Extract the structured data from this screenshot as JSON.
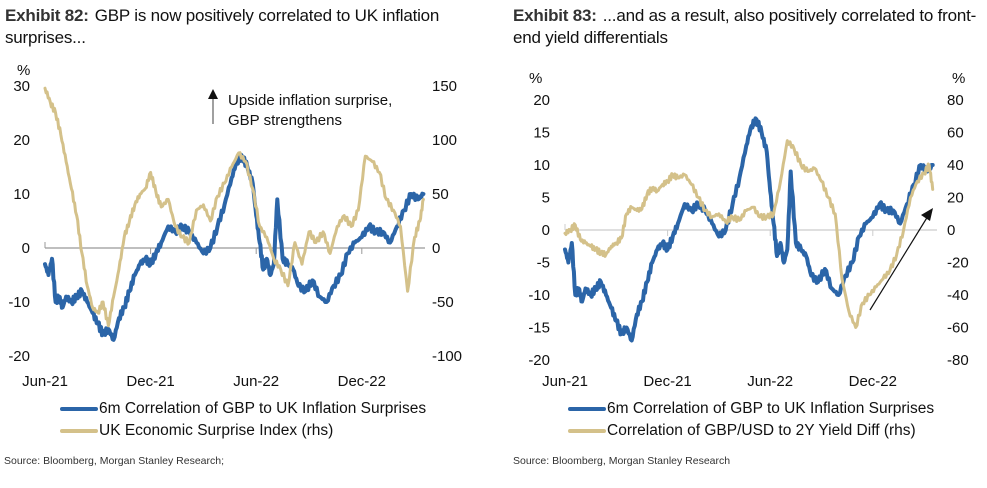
{
  "colors": {
    "blue": "#2B65A8",
    "gold": "#D4C18A",
    "axis": "#999999",
    "text": "#111111"
  },
  "chart_data": [
    {
      "type": "line",
      "exhibit": "Exhibit 82:",
      "title": "GBP is now positively correlated to UK inflation surprises...",
      "ylabel_left": "%",
      "ylim_left": [
        -20,
        30
      ],
      "yticks_left": [
        "30",
        "20",
        "10",
        "0",
        "-10",
        "-20"
      ],
      "ylim_right": [
        -100,
        150
      ],
      "yticks_right": [
        "150",
        "100",
        "50",
        "0",
        "-50",
        "-100"
      ],
      "xticks": [
        "Jun-21",
        "Dec-21",
        "Jun-22",
        "Dec-22"
      ],
      "x_months": "months since Jun-21 (0 = Jun-21)",
      "annotation": [
        "Upside inflation surprise,",
        "GBP strengthens"
      ],
      "series": [
        {
          "name": "6m Correlation of GBP to UK Inflation Surprises",
          "axis": "left",
          "color": "#2B65A8",
          "x": [
            0,
            0.2,
            0.4,
            0.6,
            0.8,
            1.0,
            1.2,
            1.5,
            1.8,
            2.1,
            2.4,
            2.7,
            3.0,
            3.3,
            3.6,
            3.9,
            4.2,
            4.5,
            4.8,
            5.1,
            5.4,
            5.7,
            6.0,
            6.3,
            6.6,
            7.0,
            7.4,
            7.8,
            8.2,
            8.6,
            9.0,
            9.4,
            9.8,
            10.2,
            10.6,
            10.9,
            11.2,
            11.5,
            11.8,
            12.0,
            12.2,
            12.4,
            12.6,
            12.8,
            13.0,
            13.2,
            13.5,
            13.8,
            14.1,
            14.4,
            14.8,
            15.2,
            15.6,
            16.0,
            16.4,
            16.8,
            17.2,
            17.6,
            18.0,
            18.4,
            18.8,
            19.2,
            19.6,
            20.0,
            20.4,
            20.8,
            21.2,
            21.5
          ],
          "values": [
            -3,
            -5,
            -2,
            -10,
            -9,
            -11,
            -9,
            -10,
            -9,
            -8,
            -10,
            -12,
            -14,
            -16,
            -15,
            -17,
            -13,
            -11,
            -8,
            -5,
            -3,
            -2,
            -3,
            -1,
            1,
            4,
            3,
            4,
            3,
            1,
            -1,
            0,
            4,
            8,
            13,
            16,
            17,
            15,
            12,
            6,
            1,
            -4,
            -2,
            -5,
            -3,
            9,
            -2,
            -3,
            -4,
            -7,
            -8,
            -6,
            -9,
            -10,
            -7,
            -5,
            -1,
            1,
            2,
            4,
            3,
            3,
            1,
            4,
            7,
            10,
            9,
            10
          ],
          "end_label": null
        },
        {
          "name": "UK Economic Surprise Index (rhs)",
          "axis": "right",
          "color": "#D4C18A",
          "x": [
            0,
            0.3,
            0.6,
            0.9,
            1.2,
            1.5,
            1.8,
            2.1,
            2.4,
            2.7,
            3.0,
            3.3,
            3.6,
            3.9,
            4.2,
            4.5,
            4.8,
            5.1,
            5.4,
            5.7,
            6.0,
            6.3,
            6.6,
            7.0,
            7.4,
            7.8,
            8.2,
            8.6,
            9.0,
            9.4,
            9.8,
            10.2,
            10.6,
            11.0,
            11.4,
            11.8,
            12.2,
            12.6,
            13.0,
            13.4,
            13.8,
            14.2,
            14.6,
            15.0,
            15.4,
            15.8,
            16.2,
            16.6,
            17.0,
            17.4,
            17.8,
            18.2,
            18.6,
            19.0,
            19.4,
            19.8,
            20.2,
            20.6,
            21.0,
            21.3,
            21.5
          ],
          "values": [
            148,
            135,
            125,
            105,
            80,
            55,
            30,
            -5,
            -35,
            -55,
            -60,
            -50,
            -72,
            -45,
            -20,
            10,
            25,
            40,
            50,
            55,
            70,
            52,
            38,
            45,
            20,
            10,
            5,
            35,
            40,
            25,
            48,
            60,
            75,
            88,
            80,
            55,
            20,
            10,
            -10,
            -20,
            -35,
            5,
            -15,
            15,
            5,
            15,
            -5,
            20,
            30,
            20,
            35,
            85,
            80,
            70,
            45,
            35,
            20,
            -40,
            10,
            25,
            45
          ],
          "end_label": null
        }
      ],
      "legend": [
        "6m Correlation of GBP to UK Inflation Surprises",
        "UK Economic Surprise Index (rhs)"
      ],
      "legend_placement": "bottom",
      "source": "Source: Bloomberg, Morgan Stanley Research;"
    },
    {
      "type": "line",
      "exhibit": "Exhibit 83:",
      "title": "...and as a result, also positively correlated to front-end yield differentials",
      "ylabel_left": "%",
      "ylabel_right": "%",
      "ylim_left": [
        -20,
        20
      ],
      "yticks_left": [
        "20",
        "15",
        "10",
        "5",
        "0",
        "-5",
        "-10",
        "-15",
        "-20"
      ],
      "ylim_right": [
        -80,
        80
      ],
      "yticks_right": [
        "80",
        "60",
        "40",
        "20",
        "0",
        "-20",
        "-40",
        "-60",
        "-80"
      ],
      "xticks": [
        "Jun-21",
        "Dec-21",
        "Jun-22",
        "Dec-22"
      ],
      "series": [
        {
          "name": "6m Correlation of GBP to UK Inflation Surprises",
          "axis": "left",
          "color": "#2B65A8",
          "x": [
            0,
            0.2,
            0.4,
            0.6,
            0.8,
            1.0,
            1.2,
            1.5,
            1.8,
            2.1,
            2.4,
            2.7,
            3.0,
            3.3,
            3.6,
            3.9,
            4.2,
            4.5,
            4.8,
            5.1,
            5.4,
            5.7,
            6.0,
            6.3,
            6.6,
            7.0,
            7.4,
            7.8,
            8.2,
            8.6,
            9.0,
            9.4,
            9.8,
            10.2,
            10.6,
            10.9,
            11.2,
            11.5,
            11.8,
            12.0,
            12.2,
            12.4,
            12.6,
            12.8,
            13.0,
            13.2,
            13.5,
            13.8,
            14.1,
            14.4,
            14.8,
            15.2,
            15.6,
            16.0,
            16.4,
            16.8,
            17.2,
            17.6,
            18.0,
            18.4,
            18.8,
            19.2,
            19.6,
            20.0,
            20.4,
            20.8,
            21.2,
            21.5
          ],
          "values": [
            -3,
            -5,
            -2,
            -10,
            -9,
            -11,
            -9,
            -10,
            -9,
            -8,
            -10,
            -12,
            -14,
            -16,
            -15,
            -17,
            -13,
            -11,
            -8,
            -5,
            -3,
            -2,
            -3,
            -1,
            1,
            4,
            3,
            4,
            3,
            1,
            -1,
            0,
            4,
            8,
            13,
            16,
            17,
            15,
            12,
            6,
            1,
            -4,
            -2,
            -5,
            -3,
            9,
            -2,
            -3,
            -4,
            -7,
            -8,
            -6,
            -9,
            -10,
            -7,
            -5,
            -1,
            1,
            2,
            4,
            3,
            3,
            1,
            4,
            7,
            10,
            9,
            10
          ]
        },
        {
          "name": "Correlation of GBP/USD to 2Y Yield Diff (rhs)",
          "axis": "right",
          "color": "#D4C18A",
          "x": [
            0,
            0.3,
            0.6,
            0.9,
            1.2,
            1.5,
            1.8,
            2.1,
            2.4,
            2.7,
            3.0,
            3.3,
            3.6,
            3.9,
            4.2,
            4.5,
            4.8,
            5.1,
            5.4,
            5.7,
            6.0,
            6.3,
            6.6,
            7.0,
            7.4,
            7.8,
            8.2,
            8.6,
            9.0,
            9.4,
            9.8,
            10.2,
            10.6,
            11.0,
            11.4,
            11.8,
            12.2,
            12.6,
            13.0,
            13.4,
            13.8,
            14.2,
            14.6,
            15.0,
            15.4,
            15.8,
            16.2,
            16.6,
            17.0,
            17.4,
            17.8,
            18.2,
            18.6,
            19.0,
            19.4,
            19.8,
            20.2,
            20.6,
            21.0,
            21.3,
            21.5
          ],
          "values": [
            -2,
            0,
            3,
            -6,
            -8,
            -10,
            -12,
            -14,
            -15,
            -10,
            -8,
            -5,
            10,
            14,
            12,
            13,
            22,
            26,
            24,
            28,
            30,
            34,
            32,
            34,
            28,
            20,
            12,
            8,
            10,
            5,
            8,
            6,
            12,
            14,
            8,
            8,
            10,
            30,
            55,
            50,
            40,
            36,
            38,
            30,
            20,
            10,
            -30,
            -50,
            -60,
            -45,
            -40,
            -35,
            -30,
            -25,
            -15,
            0,
            20,
            30,
            35,
            40,
            25
          ]
        }
      ],
      "legend": [
        "6m Correlation of GBP to UK Inflation Surprises",
        "Correlation of GBP/USD to 2Y Yield Diff (rhs)"
      ],
      "legend_placement": "bottom",
      "annotation": "arrow pointing up-right",
      "source": "Source: Bloomberg, Morgan Stanley Research"
    }
  ]
}
